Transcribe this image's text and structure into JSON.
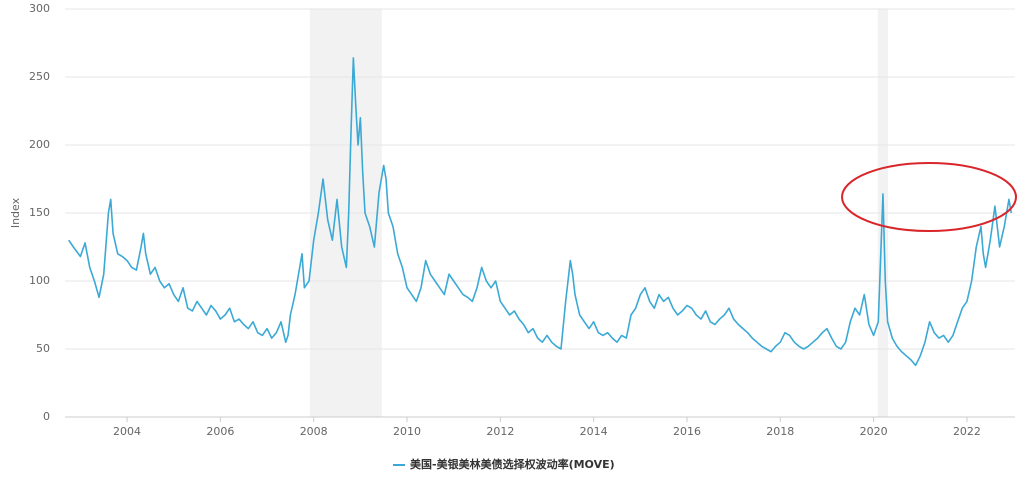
{
  "chart_data": {
    "type": "line",
    "y_label": "Index",
    "x": [
      2002.75,
      2002.85,
      2003.0,
      2003.1,
      2003.2,
      2003.3,
      2003.4,
      2003.5,
      2003.6,
      2003.65,
      2003.7,
      2003.8,
      2003.9,
      2004.0,
      2004.1,
      2004.2,
      2004.3,
      2004.35,
      2004.4,
      2004.5,
      2004.6,
      2004.7,
      2004.8,
      2004.9,
      2005.0,
      2005.1,
      2005.2,
      2005.3,
      2005.4,
      2005.5,
      2005.6,
      2005.7,
      2005.8,
      2005.9,
      2006.0,
      2006.1,
      2006.2,
      2006.3,
      2006.4,
      2006.5,
      2006.6,
      2006.7,
      2006.8,
      2006.9,
      2007.0,
      2007.1,
      2007.2,
      2007.3,
      2007.4,
      2007.45,
      2007.5,
      2007.6,
      2007.7,
      2007.75,
      2007.8,
      2007.9,
      2008.0,
      2008.1,
      2008.2,
      2008.3,
      2008.4,
      2008.5,
      2008.6,
      2008.7,
      2008.75,
      2008.8,
      2008.85,
      2008.9,
      2008.95,
      2009.0,
      2009.05,
      2009.1,
      2009.2,
      2009.3,
      2009.4,
      2009.5,
      2009.55,
      2009.6,
      2009.7,
      2009.8,
      2009.9,
      2010.0,
      2010.1,
      2010.2,
      2010.3,
      2010.4,
      2010.5,
      2010.6,
      2010.7,
      2010.8,
      2010.9,
      2011.0,
      2011.1,
      2011.2,
      2011.3,
      2011.4,
      2011.5,
      2011.6,
      2011.7,
      2011.8,
      2011.9,
      2012.0,
      2012.1,
      2012.2,
      2012.3,
      2012.4,
      2012.5,
      2012.6,
      2012.7,
      2012.8,
      2012.9,
      2013.0,
      2013.1,
      2013.2,
      2013.3,
      2013.4,
      2013.5,
      2013.55,
      2013.6,
      2013.7,
      2013.8,
      2013.9,
      2014.0,
      2014.1,
      2014.2,
      2014.3,
      2014.4,
      2014.5,
      2014.6,
      2014.7,
      2014.8,
      2014.9,
      2015.0,
      2015.1,
      2015.2,
      2015.3,
      2015.4,
      2015.5,
      2015.6,
      2015.7,
      2015.8,
      2015.9,
      2016.0,
      2016.1,
      2016.2,
      2016.3,
      2016.4,
      2016.5,
      2016.6,
      2016.7,
      2016.8,
      2016.9,
      2017.0,
      2017.1,
      2017.2,
      2017.3,
      2017.4,
      2017.5,
      2017.6,
      2017.7,
      2017.8,
      2017.9,
      2018.0,
      2018.1,
      2018.2,
      2018.3,
      2018.4,
      2018.5,
      2018.6,
      2018.7,
      2018.8,
      2018.9,
      2019.0,
      2019.1,
      2019.2,
      2019.3,
      2019.4,
      2019.5,
      2019.6,
      2019.7,
      2019.8,
      2019.9,
      2020.0,
      2020.1,
      2020.2,
      2020.25,
      2020.3,
      2020.4,
      2020.5,
      2020.6,
      2020.7,
      2020.8,
      2020.9,
      2021.0,
      2021.1,
      2021.2,
      2021.3,
      2021.4,
      2021.5,
      2021.6,
      2021.7,
      2021.8,
      2021.9,
      2022.0,
      2022.1,
      2022.2,
      2022.3,
      2022.35,
      2022.4,
      2022.5,
      2022.6,
      2022.7,
      2022.8,
      2022.9,
      2022.95
    ],
    "series": [
      {
        "name": "美国-美银美林美债选择权波动率(MOVE)",
        "color": "#3ba9d5",
        "values": [
          130,
          125,
          118,
          128,
          110,
          100,
          88,
          105,
          150,
          160,
          135,
          120,
          118,
          115,
          110,
          108,
          125,
          135,
          120,
          105,
          110,
          100,
          95,
          98,
          90,
          85,
          95,
          80,
          78,
          85,
          80,
          75,
          82,
          78,
          72,
          75,
          80,
          70,
          72,
          68,
          65,
          70,
          62,
          60,
          65,
          58,
          62,
          70,
          55,
          60,
          75,
          90,
          110,
          120,
          95,
          100,
          130,
          150,
          175,
          145,
          130,
          160,
          125,
          110,
          150,
          210,
          264,
          230,
          200,
          220,
          180,
          150,
          140,
          125,
          165,
          185,
          175,
          150,
          140,
          120,
          110,
          95,
          90,
          85,
          95,
          115,
          105,
          100,
          95,
          90,
          105,
          100,
          95,
          90,
          88,
          85,
          95,
          110,
          100,
          95,
          100,
          85,
          80,
          75,
          78,
          72,
          68,
          62,
          65,
          58,
          55,
          60,
          55,
          52,
          50,
          85,
          115,
          105,
          90,
          75,
          70,
          65,
          70,
          62,
          60,
          62,
          58,
          55,
          60,
          58,
          75,
          80,
          90,
          95,
          85,
          80,
          90,
          85,
          88,
          80,
          75,
          78,
          82,
          80,
          75,
          72,
          78,
          70,
          68,
          72,
          75,
          80,
          72,
          68,
          65,
          62,
          58,
          55,
          52,
          50,
          48,
          52,
          55,
          62,
          60,
          55,
          52,
          50,
          52,
          55,
          58,
          62,
          65,
          58,
          52,
          50,
          55,
          70,
          80,
          75,
          90,
          68,
          60,
          70,
          164,
          100,
          70,
          58,
          52,
          48,
          45,
          42,
          38,
          45,
          55,
          70,
          62,
          58,
          60,
          55,
          60,
          70,
          80,
          85,
          100,
          125,
          140,
          120,
          110,
          130,
          155,
          125,
          140,
          160,
          150
        ]
      }
    ],
    "shaded_ranges": [
      [
        2007.92,
        2009.46
      ],
      [
        2020.09,
        2020.31
      ]
    ],
    "shade_color": "#f2f2f2",
    "xlim": [
      2002.67,
      2023.03
    ],
    "ylim": [
      0,
      300
    ],
    "xticks": [
      2004,
      2006,
      2008,
      2010,
      2012,
      2014,
      2016,
      2018,
      2020,
      2022
    ],
    "yticks": [
      0,
      50,
      100,
      150,
      200,
      250,
      300
    ],
    "grid": true
  }
}
